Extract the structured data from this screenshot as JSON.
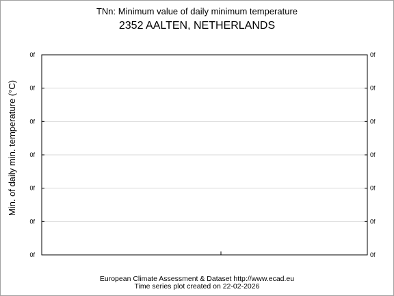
{
  "chart_data": {
    "type": "line",
    "title": "TNn: Minimum value of daily minimum temperature",
    "subtitle": "2352 AALTEN, NETHERLANDS",
    "ylabel": "Min. of daily min. temperature (°C)",
    "xlabel": "",
    "y_tick_labels": [
      "0f",
      "0f",
      "0f",
      "0f",
      "0f",
      "0f",
      "0f"
    ],
    "x_tick_labels": [],
    "grid": "horizontal",
    "series": []
  },
  "footer": {
    "line1": "European Climate Assessment & Dataset  http://www.ecad.eu",
    "line2": "Time series plot created on 22-02-2026"
  }
}
